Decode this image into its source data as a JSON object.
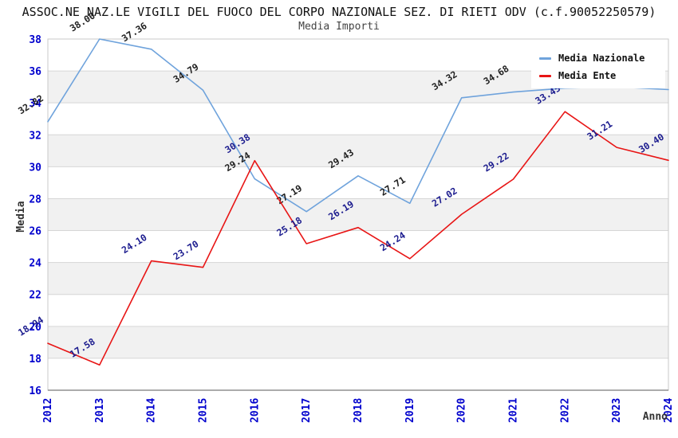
{
  "header": {
    "title": "ASSOC.NE NAZ.LE VIGILI DEL FUOCO DEL CORPO NAZIONALE SEZ. DI RIETI ODV (c.f.90052250579)",
    "subtitle": "Media Importi"
  },
  "axes": {
    "y_label": "Media",
    "x_label": "Anno",
    "y_ticks": [
      38,
      36,
      34,
      32,
      30,
      28,
      26,
      24,
      22,
      20,
      18,
      16
    ],
    "x_categories": [
      "2012",
      "2013",
      "2014",
      "2015",
      "2016",
      "2017",
      "2018",
      "2019",
      "2020",
      "2021",
      "2022",
      "2023",
      "2024"
    ]
  },
  "legend": [
    {
      "label": "Media Nazionale",
      "color": "#6fa3dc"
    },
    {
      "label": "Media Ente",
      "color": "#e81515"
    }
  ],
  "colors": {
    "tick_label": "#0000cd",
    "axis_title": "#333333",
    "band_gray": "#f1f1f1",
    "gridline": "#d6d6d6",
    "plot_border": "#c9c9c9",
    "bottom_axis": "#7a7a7a",
    "nazionale_line": "#6fa3dc",
    "nazionale_point_label": "#1f1f1f",
    "ente_line": "#e81515",
    "ente_point_label": "#1b1b8e"
  },
  "chart_data": {
    "type": "line",
    "title": "ASSOC.NE NAZ.LE VIGILI DEL FUOCO DEL CORPO NAZIONALE SEZ. DI RIETI ODV (c.f.90052250579)",
    "subtitle": "Media Importi",
    "xlabel": "Anno",
    "ylabel": "Media",
    "ylim": [
      16,
      38
    ],
    "grid": true,
    "legend_position": "top-right",
    "categories": [
      "2012",
      "2013",
      "2014",
      "2015",
      "2016",
      "2017",
      "2018",
      "2019",
      "2020",
      "2021",
      "2022",
      "2023",
      "2024"
    ],
    "series": [
      {
        "name": "Media Nazionale",
        "color": "#6fa3dc",
        "label_color": "#1f1f1f",
        "values": [
          32.82,
          38.0,
          37.36,
          34.79,
          29.24,
          27.19,
          29.43,
          27.71,
          34.32,
          34.68,
          34.92,
          35.0,
          34.83
        ],
        "labels": [
          "32.82",
          "38.00",
          "37.36",
          "34.79",
          "29.24",
          "27.19",
          "29.43",
          "27.71",
          "34.32",
          "34.68",
          null,
          null,
          "34.83"
        ]
      },
      {
        "name": "Media Ente",
        "color": "#e81515",
        "label_color": "#1b1b8e",
        "values": [
          18.94,
          17.58,
          24.1,
          23.7,
          30.38,
          25.18,
          26.19,
          24.24,
          27.02,
          29.22,
          33.45,
          31.21,
          30.4
        ],
        "labels": [
          "18.94",
          "17.58",
          "24.10",
          "23.70",
          "30.38",
          "25.18",
          "26.19",
          "24.24",
          "27.02",
          "29.22",
          "33.45",
          "31.21",
          "30.40"
        ]
      }
    ]
  }
}
